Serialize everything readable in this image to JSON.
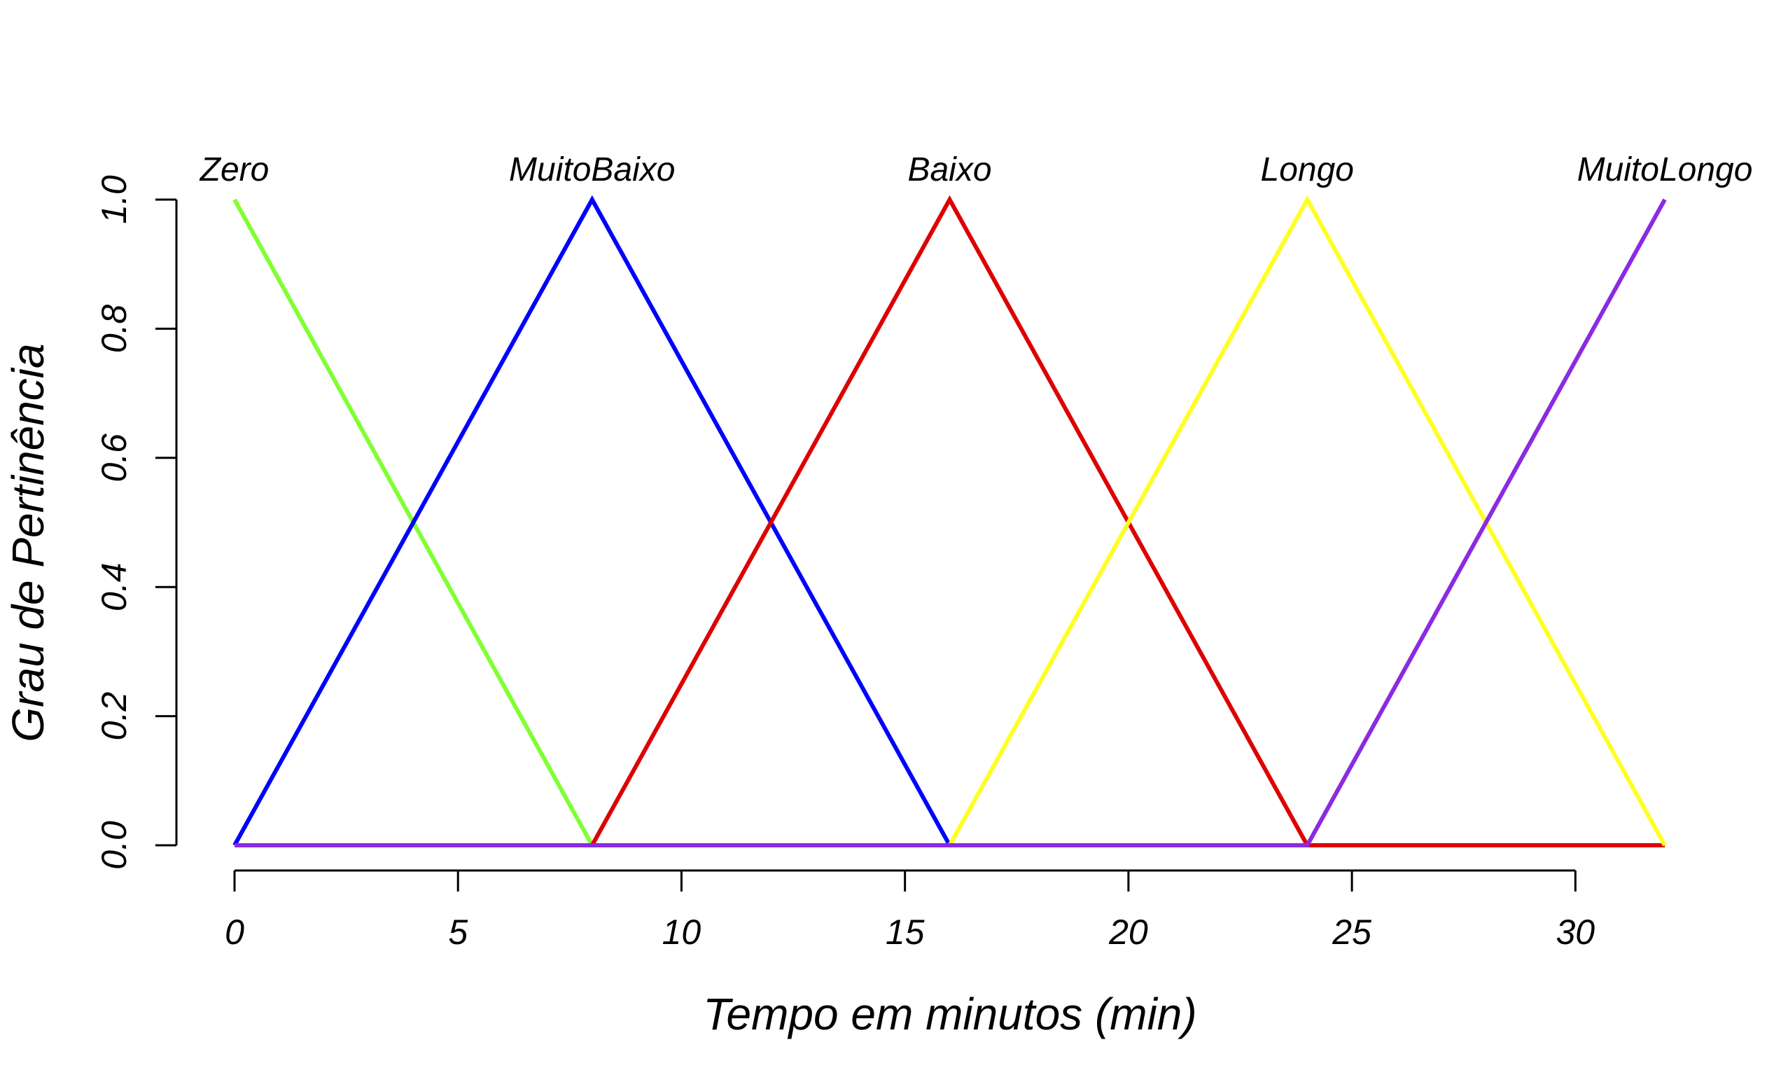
{
  "chart_data": {
    "type": "line",
    "title": "",
    "xlabel": "Tempo em minutos (min)",
    "ylabel": "Grau de Pertinência",
    "xlim": [
      0,
      32
    ],
    "ylim": [
      0,
      1
    ],
    "x_ticks": [
      "0",
      "5",
      "10",
      "15",
      "20",
      "25",
      "30"
    ],
    "y_ticks": [
      "0.0",
      "0.2",
      "0.4",
      "0.6",
      "0.8",
      "1.0"
    ],
    "grid": false,
    "legend": "none",
    "series": [
      {
        "name": "Zero",
        "color": "#80FF33",
        "x": [
          0,
          8,
          32
        ],
        "y": [
          1,
          0,
          0
        ]
      },
      {
        "name": "MuitoBaixo",
        "color": "#0000FF",
        "x": [
          0,
          8,
          16,
          32
        ],
        "y": [
          0,
          1,
          0,
          0
        ]
      },
      {
        "name": "Baixo",
        "color": "#DD0000",
        "x": [
          0,
          8,
          16,
          24,
          32
        ],
        "y": [
          0,
          0,
          1,
          0,
          0
        ]
      },
      {
        "name": "Longo",
        "color": "#FFFF22",
        "x": [
          0,
          16,
          24,
          32
        ],
        "y": [
          0,
          0,
          1,
          0
        ]
      },
      {
        "name": "MuitoLongo",
        "color": "#8A2BE2",
        "x": [
          0,
          24,
          32
        ],
        "y": [
          0,
          0,
          1
        ]
      }
    ]
  }
}
